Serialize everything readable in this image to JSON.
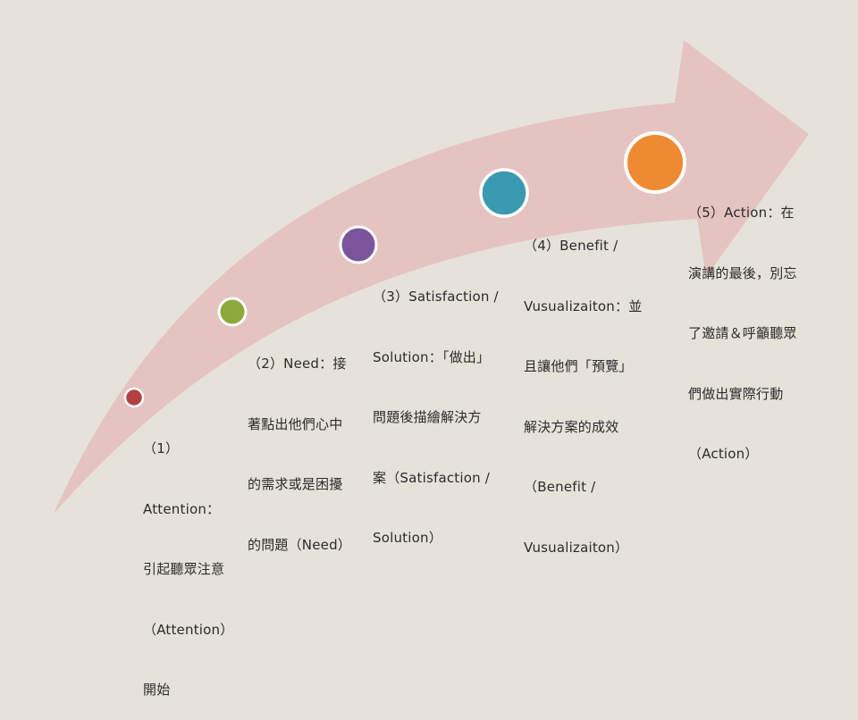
{
  "colors": {
    "background": "#e6e2da",
    "arrow": "#e4c3c1",
    "circle_stroke": "#ffffff"
  },
  "steps": [
    {
      "color": "#b24242",
      "lines": [
        "（1）",
        "Attention：",
        "引起聽眾注意",
        "（Attention）",
        "開始"
      ]
    },
    {
      "color": "#8ea83c",
      "lines": [
        "（2）Need：接",
        "著點出他們心中",
        "的需求或是困擾",
        "的問題（Need）"
      ]
    },
    {
      "color": "#7a559a",
      "lines": [
        "（3）Satisfaction /",
        "Solution：「做出」",
        "問題後描繪解決方",
        "案（Satisfaction /",
        "Solution）"
      ]
    },
    {
      "color": "#3b9ab0",
      "lines": [
        "（4）Benefit /",
        "Vusualizaiton：並",
        "且讓他們「預覽」",
        "解決方案的成效",
        "（Benefit /",
        "Vusualizaiton）"
      ]
    },
    {
      "color": "#ee8a31",
      "lines": [
        "（5）Action：在",
        "演講的最後，別忘",
        "了邀請＆呼籲聽眾",
        "們做出實際行動",
        "（Action）"
      ]
    }
  ]
}
